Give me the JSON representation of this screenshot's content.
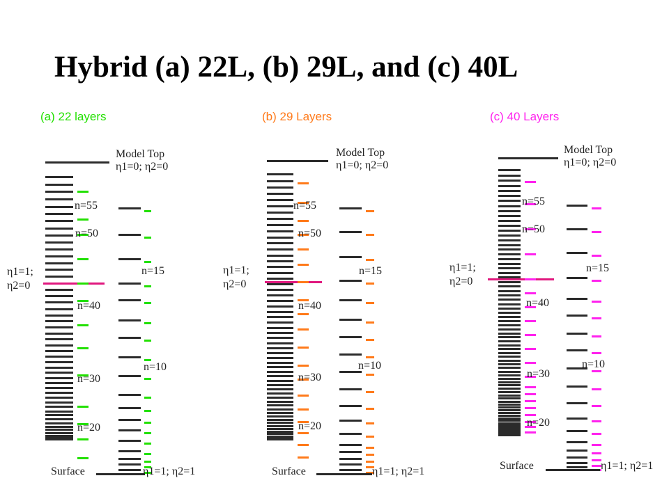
{
  "title": "Hybrid (a) 22L, (b) 29L, and (c) 40L",
  "colors": {
    "black_levels": "#2b2b2b",
    "separator": "#e0187e",
    "panel_a": "#22e000",
    "panel_b": "#ff7a1a",
    "panel_c": "#ff22ee"
  },
  "labels": {
    "model_top": "Model Top",
    "top_condition": "η1=0; η2=0",
    "surface": "Surface",
    "bottom_condition": "η1=1; η2=1",
    "hybrid_eta1": "η1=1;",
    "hybrid_eta2": "η2=0"
  },
  "panels": [
    {
      "title": "(a) 22 layers",
      "color": "#22e000",
      "left_labels": [
        "n=55",
        "n=50",
        "n=40",
        "n=30",
        "n=20"
      ],
      "right_labels": [
        "n=15",
        "n=10"
      ]
    },
    {
      "title": "(b) 29 Layers",
      "color": "#ff7a1a",
      "left_labels": [
        "n=55",
        "n=50",
        "n=40",
        "n=30",
        "n=20"
      ],
      "right_labels": [
        "n=15",
        "n=10"
      ]
    },
    {
      "title": "(c) 40 Layers",
      "color": "#ff22ee",
      "left_labels": [
        "n=55",
        "n=50",
        "n=40",
        "n=30",
        "n=20"
      ],
      "right_labels": [
        "n=15",
        "n=10"
      ]
    }
  ]
}
